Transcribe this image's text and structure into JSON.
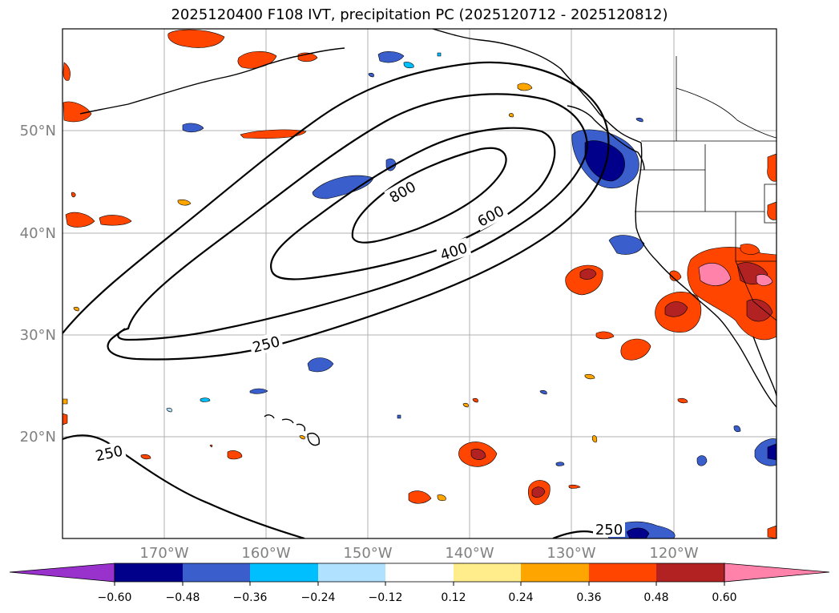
{
  "title": "2025120400 F108 IVT, precipitation PC (2025120712 - 2025120812)",
  "lat_labels": [
    "50°N",
    "40°N",
    "30°N",
    "20°N"
  ],
  "lon_labels": [
    "170°W",
    "160°W",
    "150°W",
    "140°W",
    "130°W",
    "120°W"
  ],
  "contour_labels": [
    "800",
    "600",
    "400",
    "250",
    "250",
    "250"
  ],
  "colorbar": {
    "ticks": [
      "−0.60",
      "−0.48",
      "−0.36",
      "−0.24",
      "−0.12",
      "0.12",
      "0.24",
      "0.36",
      "0.48",
      "0.60"
    ],
    "colors": [
      "#9932cc",
      "#00008b",
      "#3a5fcd",
      "#00bfff",
      "#b0e2ff",
      "#ffffff",
      "#ffec8b",
      "#ffa500",
      "#ff4500",
      "#b22222",
      "#ff82ab"
    ]
  },
  "colors": {
    "grid": "#b0b0b0",
    "contour": "#000000",
    "land_border": "#000000",
    "label_gray": "#808080"
  }
}
